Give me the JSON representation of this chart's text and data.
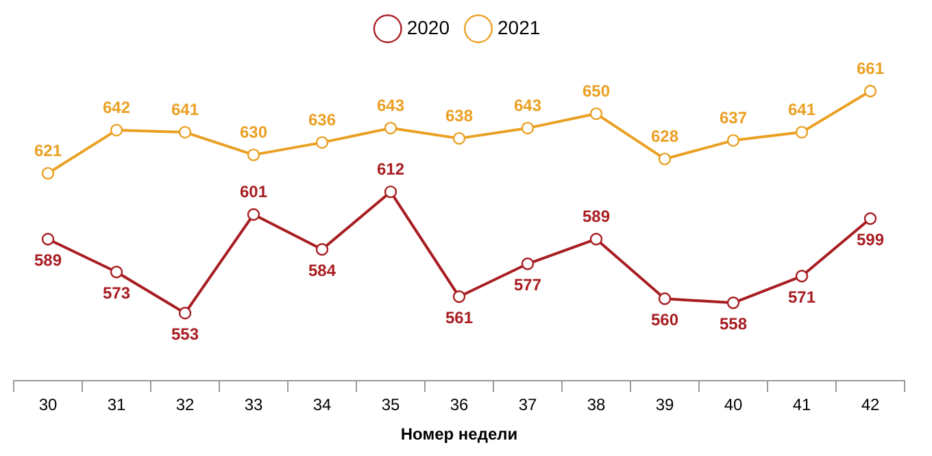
{
  "chart_data": {
    "type": "line",
    "xlabel": "Номер недели",
    "categories": [
      "30",
      "31",
      "32",
      "33",
      "34",
      "35",
      "36",
      "37",
      "38",
      "39",
      "40",
      "41",
      "42"
    ],
    "series": [
      {
        "name": "2020",
        "color": "#a81d22",
        "values": [
          589,
          573,
          553,
          601,
          584,
          612,
          561,
          577,
          589,
          560,
          558,
          571,
          599
        ]
      },
      {
        "name": "2021",
        "color": "#eaa023",
        "values": [
          621,
          642,
          641,
          630,
          636,
          643,
          638,
          643,
          650,
          628,
          637,
          641,
          661
        ]
      }
    ],
    "data_labels": true,
    "legend": "top",
    "marker": "circle",
    "line_style": "solid"
  }
}
